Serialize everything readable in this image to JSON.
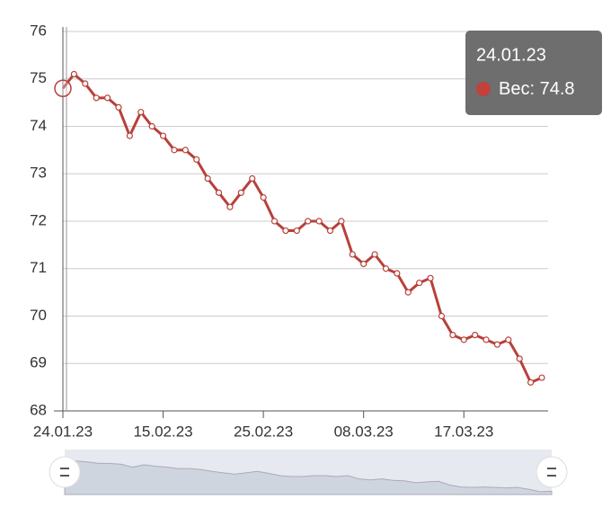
{
  "chart_data": {
    "type": "line",
    "categories": [
      "24.01.23",
      null,
      null,
      null,
      null,
      null,
      null,
      null,
      null,
      "15.02.23",
      null,
      null,
      null,
      null,
      null,
      null,
      null,
      null,
      "25.02.23",
      null,
      null,
      null,
      null,
      null,
      null,
      null,
      null,
      "08.03.23",
      null,
      null,
      null,
      null,
      null,
      null,
      null,
      null,
      "17.03.23",
      null,
      null,
      null,
      null,
      null,
      null,
      null
    ],
    "series": [
      {
        "name": "Вес",
        "color": "#b8403a",
        "values": [
          74.8,
          75.1,
          74.9,
          74.6,
          74.6,
          74.4,
          73.8,
          74.3,
          74.0,
          73.8,
          73.5,
          73.5,
          73.3,
          72.9,
          72.6,
          72.3,
          72.6,
          72.9,
          72.5,
          72.0,
          71.8,
          71.8,
          72.0,
          72.0,
          71.8,
          72.0,
          71.3,
          71.1,
          71.3,
          71.0,
          70.9,
          70.5,
          70.7,
          70.8,
          70.0,
          69.6,
          69.5,
          69.6,
          69.5,
          69.4,
          69.5,
          69.1,
          68.6,
          68.7
        ]
      }
    ],
    "ylim": [
      68,
      76
    ],
    "yticks": [
      68,
      69,
      70,
      71,
      72,
      73,
      74,
      75,
      76
    ],
    "grid": true
  }
}
